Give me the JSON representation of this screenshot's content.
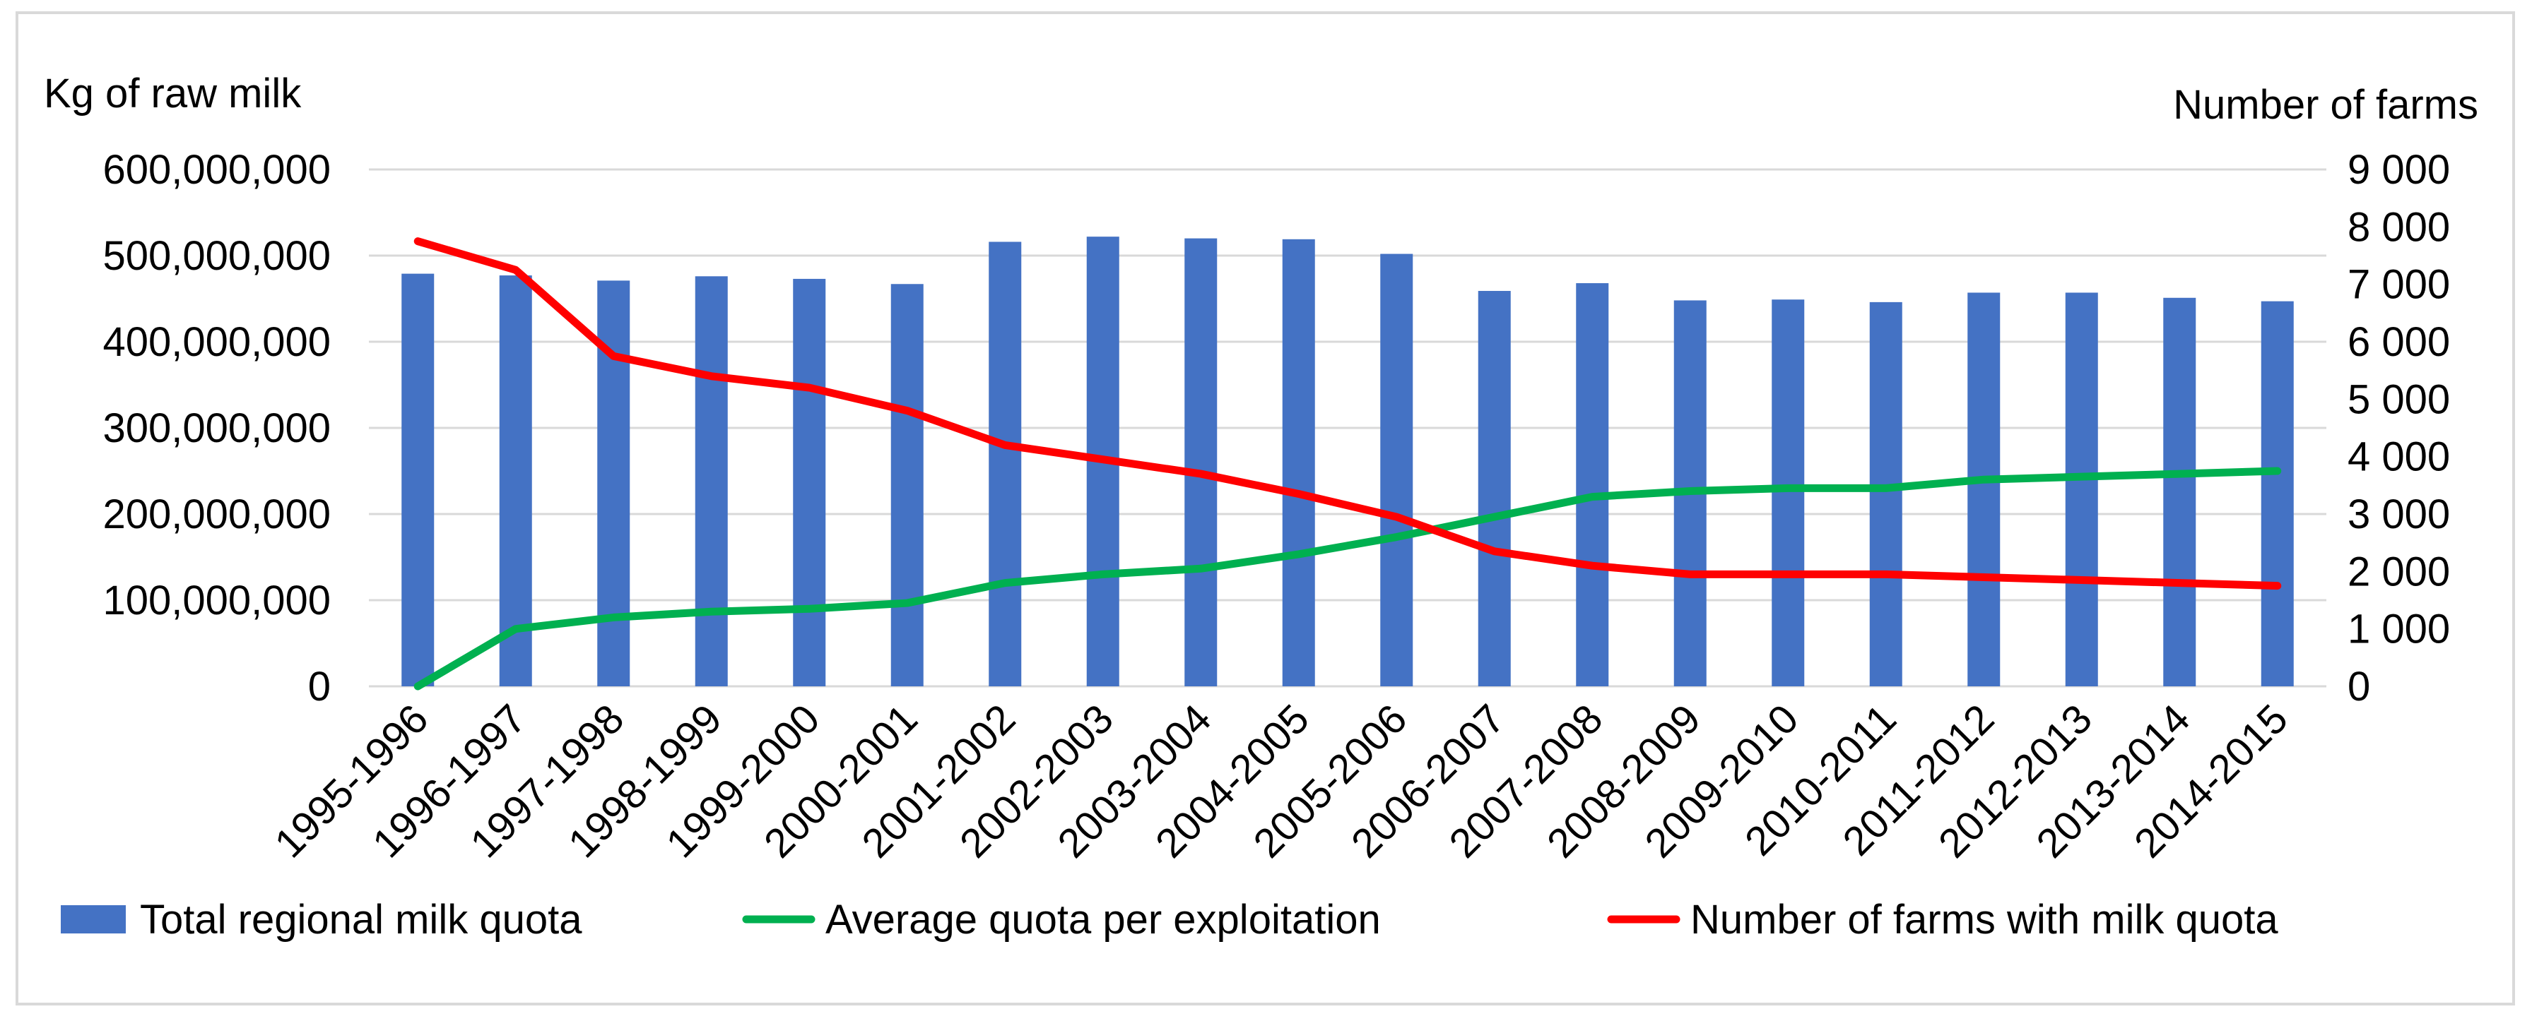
{
  "chart_data": {
    "type": "bar",
    "categories": [
      "1995-1996",
      "1996-1997",
      "1997-1998",
      "1998-1999",
      "1999-2000",
      "2000-2001",
      "2001-2002",
      "2002-2003",
      "2003-2004",
      "2004-2005",
      "2005-2006",
      "2006-2007",
      "2007-2008",
      "2008-2009",
      "2009-2010",
      "2010-2011",
      "2011-2012",
      "2012-2013",
      "2013-2014",
      "2014-2015"
    ],
    "series": [
      {
        "name": "Total regional milk quota",
        "kind": "bar",
        "axis": "left",
        "color": "#4472C4",
        "values": [
          479000000,
          477000000,
          471000000,
          476000000,
          473000000,
          467000000,
          516000000,
          522000000,
          520000000,
          519000000,
          502000000,
          459000000,
          468000000,
          448000000,
          449000000,
          446000000,
          457000000,
          457000000,
          451000000,
          447000000
        ]
      },
      {
        "name": "Average quota per exploitation",
        "kind": "line",
        "axis": "right",
        "color": "#00B050",
        "values": [
          0,
          1000,
          1200,
          1300,
          1350,
          1450,
          1800,
          1950,
          2050,
          2300,
          2600,
          2950,
          3300,
          3400,
          3450,
          3450,
          3600,
          3650,
          3700,
          3750
        ]
      },
      {
        "name": "Number of farms with milk quota",
        "kind": "line",
        "axis": "right",
        "color": "#FF0000",
        "values": [
          7750,
          7250,
          5750,
          5400,
          5200,
          4800,
          4200,
          3950,
          3700,
          3350,
          2950,
          2350,
          2100,
          1950,
          1950,
          1950,
          1900,
          1850,
          1800,
          1750
        ]
      }
    ],
    "ylabel_left": "Kg of raw milk",
    "ylabel_right": "Number of farms",
    "ylim_left": [
      0,
      600000000
    ],
    "ylim_right": [
      0,
      9000
    ],
    "yticks_left": [
      "0",
      "100,000,000",
      "200,000,000",
      "300,000,000",
      "400,000,000",
      "500,000,000",
      "600,000,000"
    ],
    "yticks_right": [
      "0",
      "1 000",
      "2 000",
      "3 000",
      "4 000",
      "5 000",
      "6 000",
      "7 000",
      "8 000",
      "9 000"
    ],
    "grid": true,
    "legend": "bottom"
  }
}
